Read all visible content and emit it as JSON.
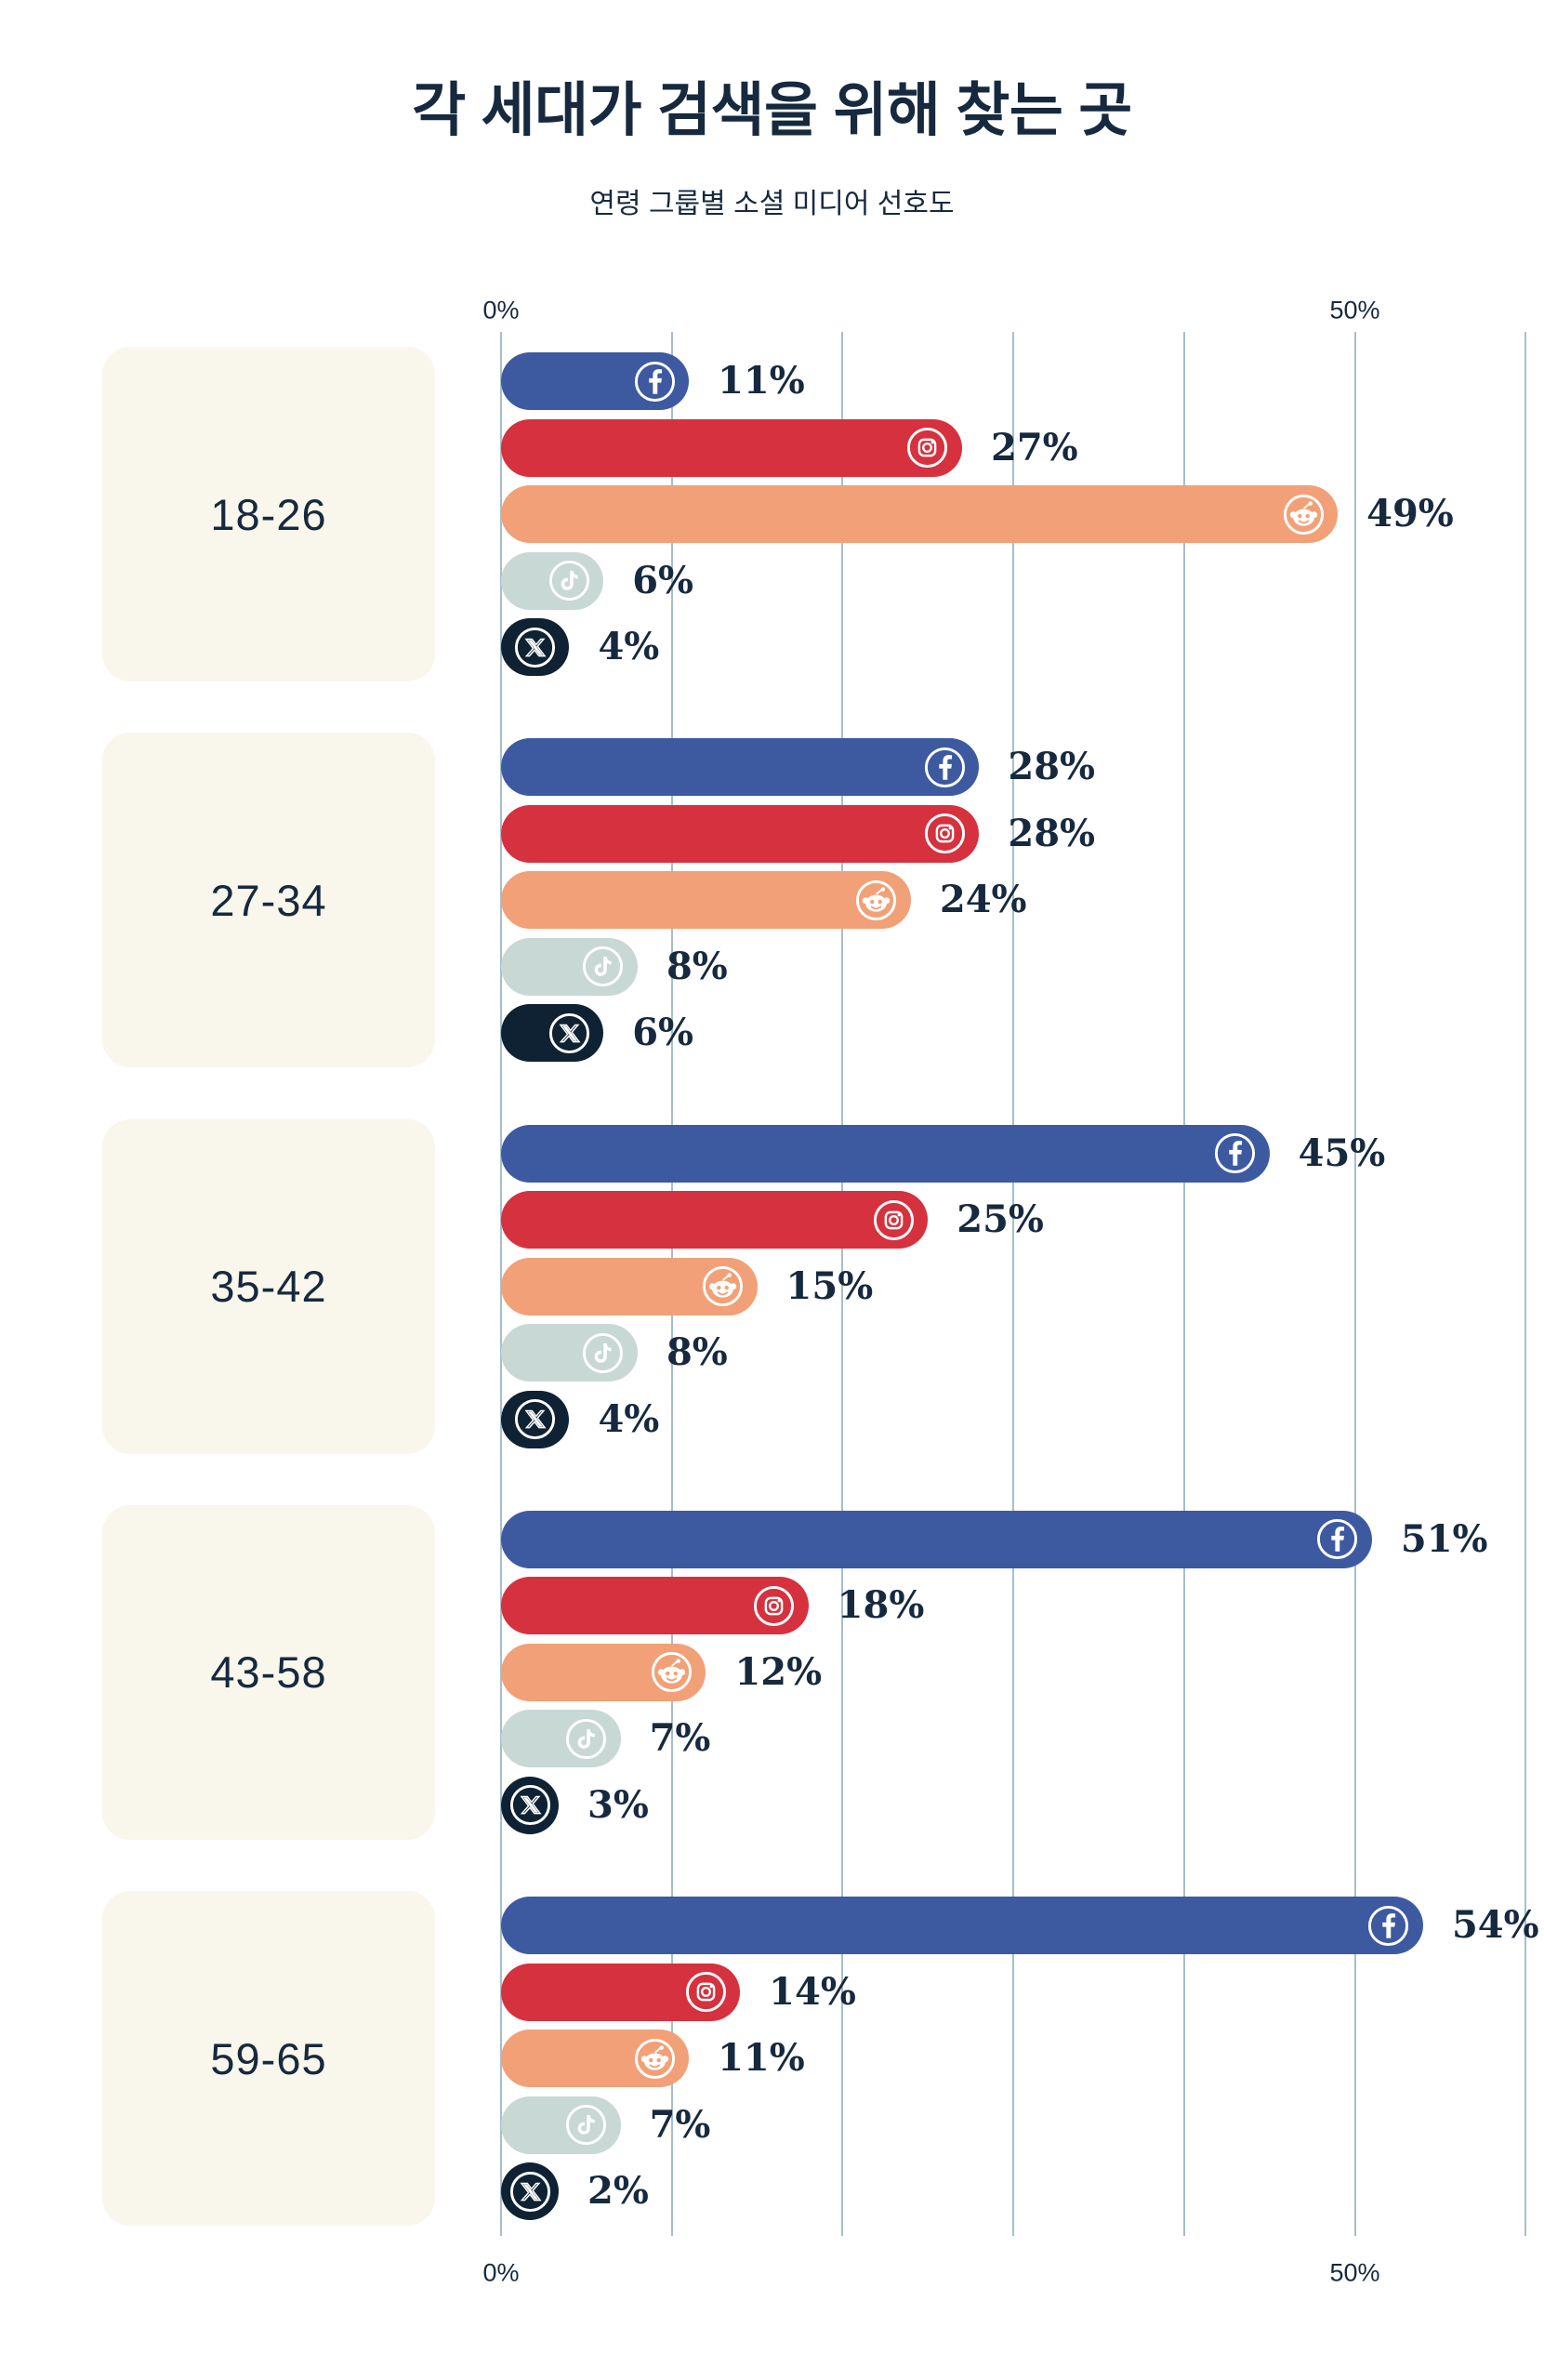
{
  "title": "각 세대가 검색을 위해 찾는 곳",
  "subtitle": "연령 그룹별 소셜 미디어 선호도",
  "axis": {
    "unit": "%",
    "top_ticks": [
      {
        "label": "0%",
        "pct": 0
      },
      {
        "label": "50%",
        "pct": 50
      }
    ],
    "bottom_ticks": [
      {
        "label": "0%",
        "pct": 0
      },
      {
        "label": "50%",
        "pct": 50
      }
    ],
    "gridline_pcts": [
      0,
      10,
      20,
      30,
      40,
      50,
      60
    ]
  },
  "colors": {
    "text": "#16293e",
    "background": "#ffffff",
    "card": "#f9f6ec",
    "gridline": "#a7bec9",
    "facebook": "#3d5aa1",
    "instagram": "#d6313e",
    "reddit": "#f2a077",
    "tiktok": "#c8d8d4",
    "x": "#0f2233"
  },
  "platforms": [
    {
      "id": "facebook",
      "name": "Facebook",
      "icon": "facebook-icon",
      "color": "#3d5aa1"
    },
    {
      "id": "instagram",
      "name": "Instagram",
      "icon": "instagram-icon",
      "color": "#d6313e"
    },
    {
      "id": "reddit",
      "name": "Reddit",
      "icon": "reddit-icon",
      "color": "#f2a077"
    },
    {
      "id": "tiktok",
      "name": "TikTok",
      "icon": "tiktok-icon",
      "color": "#c8d8d4"
    },
    {
      "id": "x",
      "name": "X",
      "icon": "x-icon",
      "color": "#0f2233"
    }
  ],
  "chart_data": {
    "type": "bar",
    "orientation": "horizontal",
    "unit": "%",
    "title": "각 세대가 검색을 위해 찾는 곳",
    "subtitle": "연령 그룹별 소셜 미디어 선호도",
    "categories": [
      "18-26",
      "27-34",
      "35-42",
      "43-58",
      "59-65"
    ],
    "series": [
      {
        "name": "Facebook",
        "values": [
          11,
          28,
          45,
          51,
          54
        ]
      },
      {
        "name": "Instagram",
        "values": [
          27,
          28,
          25,
          18,
          14
        ]
      },
      {
        "name": "Reddit",
        "values": [
          49,
          24,
          15,
          12,
          11
        ]
      },
      {
        "name": "TikTok",
        "values": [
          6,
          8,
          8,
          7,
          7
        ]
      },
      {
        "name": "X",
        "values": [
          4,
          6,
          4,
          3,
          2
        ]
      }
    ],
    "xlim": [
      0,
      60
    ],
    "gridline_interval": 10,
    "labeled_ticks": [
      "0%",
      "50%"
    ],
    "grid": true,
    "legend": false
  }
}
